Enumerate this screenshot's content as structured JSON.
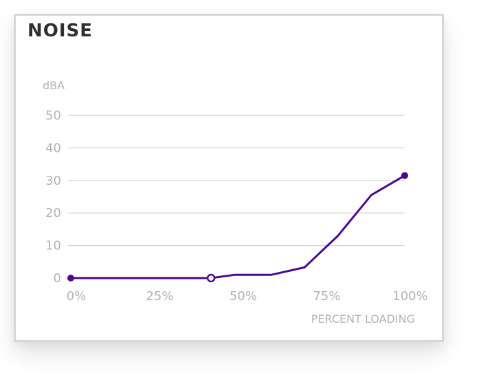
{
  "chart_data": {
    "type": "line",
    "title": "NOISE",
    "ylabel": "dBA",
    "xlabel": "PERCENT LOADING",
    "ylim": [
      0,
      50
    ],
    "yticks": [
      "0",
      "10",
      "20",
      "30",
      "40",
      "50"
    ],
    "xlim": [
      0,
      100
    ],
    "xticks": [
      "0%",
      "25%",
      "50%",
      "75%",
      "100%"
    ],
    "grid": true,
    "series": [
      {
        "color": "#4b0a8c",
        "points": [
          {
            "x": 0,
            "y": 0,
            "marker": "filled"
          },
          {
            "x": 42,
            "y": 0,
            "marker": "hollow"
          },
          {
            "x": 49,
            "y": 1
          },
          {
            "x": 60,
            "y": 1
          },
          {
            "x": 70,
            "y": 3.3
          },
          {
            "x": 80,
            "y": 13
          },
          {
            "x": 90,
            "y": 25.5
          },
          {
            "x": 100,
            "y": 31.5,
            "marker": "filled"
          }
        ]
      }
    ]
  }
}
